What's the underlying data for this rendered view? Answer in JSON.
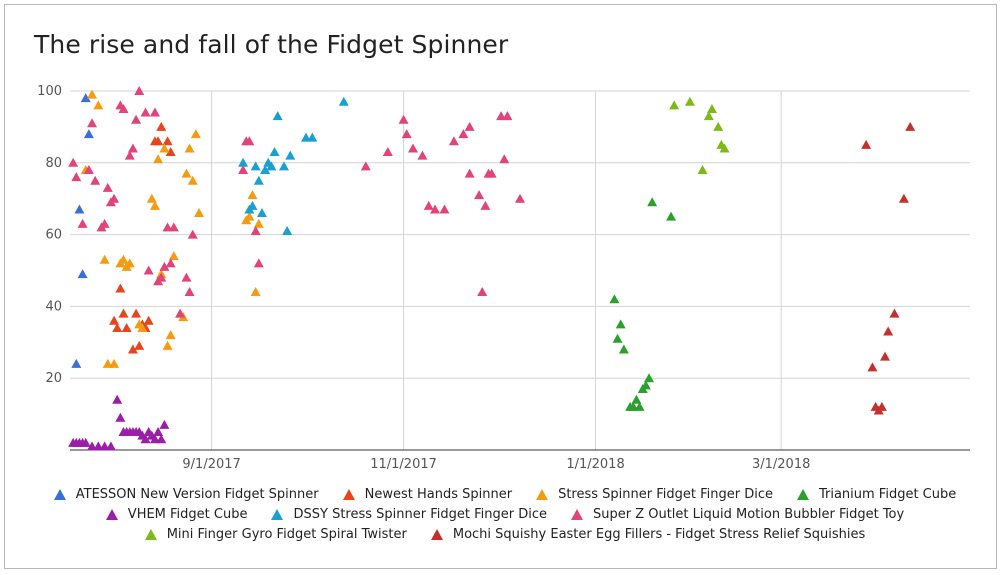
{
  "chart_data": {
    "type": "scatter",
    "title": "The rise and fall of the Fidget Spinner",
    "xlabel": "",
    "ylabel": "",
    "x_type": "date",
    "xlim": [
      "2017-07-18",
      "2018-04-30"
    ],
    "ylim": [
      0,
      100
    ],
    "x_ticks": [
      "9/1/2017",
      "11/1/2017",
      "1/1/2018",
      "3/1/2018"
    ],
    "x_tick_dates": [
      "2017-09-01",
      "2017-11-01",
      "2018-01-01",
      "2018-03-01"
    ],
    "y_ticks": [
      20,
      40,
      60,
      80,
      100
    ],
    "grid": true,
    "legend_position": "bottom",
    "series": [
      {
        "name": "ATESSON New Version Fidget Spinner",
        "color": "#3a6fd6",
        "points": [
          [
            "2017-07-20",
            24
          ],
          [
            "2017-07-21",
            67
          ],
          [
            "2017-07-22",
            49
          ],
          [
            "2017-07-23",
            98
          ],
          [
            "2017-07-24",
            88
          ]
        ]
      },
      {
        "name": "Newest Hands Spinner",
        "color": "#e8451e",
        "points": [
          [
            "2017-08-01",
            36
          ],
          [
            "2017-08-02",
            34
          ],
          [
            "2017-08-03",
            45
          ],
          [
            "2017-08-04",
            38
          ],
          [
            "2017-08-05",
            34
          ],
          [
            "2017-08-07",
            28
          ],
          [
            "2017-08-08",
            38
          ],
          [
            "2017-08-09",
            29
          ],
          [
            "2017-08-10",
            35
          ],
          [
            "2017-08-11",
            34
          ],
          [
            "2017-08-12",
            36
          ],
          [
            "2017-08-14",
            86
          ],
          [
            "2017-08-15",
            86
          ],
          [
            "2017-08-16",
            90
          ],
          [
            "2017-08-18",
            86
          ],
          [
            "2017-08-19",
            83
          ]
        ]
      },
      {
        "name": "Stress Spinner Fidget Finger Dice",
        "color": "#f59b12",
        "points": [
          [
            "2017-07-23",
            78
          ],
          [
            "2017-07-25",
            99
          ],
          [
            "2017-07-27",
            96
          ],
          [
            "2017-07-29",
            53
          ],
          [
            "2017-07-30",
            24
          ],
          [
            "2017-08-01",
            24
          ],
          [
            "2017-08-03",
            52
          ],
          [
            "2017-08-04",
            53
          ],
          [
            "2017-08-05",
            51
          ],
          [
            "2017-08-06",
            52
          ],
          [
            "2017-08-09",
            35
          ],
          [
            "2017-08-10",
            34
          ],
          [
            "2017-08-13",
            70
          ],
          [
            "2017-08-14",
            68
          ],
          [
            "2017-08-15",
            81
          ],
          [
            "2017-08-16",
            49
          ],
          [
            "2017-08-17",
            84
          ],
          [
            "2017-08-18",
            29
          ],
          [
            "2017-08-19",
            32
          ],
          [
            "2017-08-20",
            54
          ],
          [
            "2017-08-22",
            38
          ],
          [
            "2017-08-23",
            37
          ],
          [
            "2017-08-24",
            77
          ],
          [
            "2017-08-25",
            84
          ],
          [
            "2017-08-26",
            75
          ],
          [
            "2017-08-27",
            88
          ],
          [
            "2017-08-28",
            66
          ],
          [
            "2017-09-12",
            64
          ],
          [
            "2017-09-13",
            65
          ],
          [
            "2017-09-14",
            71
          ],
          [
            "2017-09-15",
            44
          ],
          [
            "2017-09-16",
            63
          ]
        ]
      },
      {
        "name": "Trianium Fidget Cube",
        "color": "#2ca02c",
        "points": [
          [
            "2018-01-07",
            42
          ],
          [
            "2018-01-08",
            31
          ],
          [
            "2018-01-09",
            35
          ],
          [
            "2018-01-10",
            28
          ],
          [
            "2018-01-12",
            12
          ],
          [
            "2018-01-13",
            12
          ],
          [
            "2018-01-14",
            14
          ],
          [
            "2018-01-15",
            12
          ],
          [
            "2018-01-16",
            17
          ],
          [
            "2018-01-17",
            18
          ],
          [
            "2018-01-18",
            20
          ],
          [
            "2018-01-19",
            69
          ],
          [
            "2018-01-25",
            65
          ]
        ]
      },
      {
        "name": "VHEM Fidget Cube",
        "color": "#9b1ea8",
        "points": [
          [
            "2017-07-19",
            2
          ],
          [
            "2017-07-20",
            2
          ],
          [
            "2017-07-21",
            2
          ],
          [
            "2017-07-22",
            2
          ],
          [
            "2017-07-23",
            2
          ],
          [
            "2017-07-25",
            1
          ],
          [
            "2017-07-27",
            1
          ],
          [
            "2017-07-29",
            1
          ],
          [
            "2017-07-31",
            1
          ],
          [
            "2017-08-02",
            14
          ],
          [
            "2017-08-03",
            9
          ],
          [
            "2017-08-04",
            5
          ],
          [
            "2017-08-05",
            5
          ],
          [
            "2017-08-06",
            5
          ],
          [
            "2017-08-07",
            5
          ],
          [
            "2017-08-08",
            5
          ],
          [
            "2017-08-09",
            5
          ],
          [
            "2017-08-10",
            4
          ],
          [
            "2017-08-11",
            3
          ],
          [
            "2017-08-12",
            5
          ],
          [
            "2017-08-13",
            4
          ],
          [
            "2017-08-14",
            3
          ],
          [
            "2017-08-15",
            5
          ],
          [
            "2017-08-16",
            3
          ],
          [
            "2017-08-17",
            7
          ]
        ]
      },
      {
        "name": "DSSY Stress Spinner Fidget Finger Dice",
        "color": "#1aa0d0",
        "points": [
          [
            "2017-09-11",
            80
          ],
          [
            "2017-09-13",
            67
          ],
          [
            "2017-09-14",
            68
          ],
          [
            "2017-09-15",
            79
          ],
          [
            "2017-09-16",
            75
          ],
          [
            "2017-09-17",
            66
          ],
          [
            "2017-09-18",
            78
          ],
          [
            "2017-09-19",
            80
          ],
          [
            "2017-09-20",
            79
          ],
          [
            "2017-09-21",
            83
          ],
          [
            "2017-09-22",
            93
          ],
          [
            "2017-09-24",
            79
          ],
          [
            "2017-09-25",
            61
          ],
          [
            "2017-09-26",
            82
          ],
          [
            "2017-10-01",
            87
          ],
          [
            "2017-10-03",
            87
          ],
          [
            "2017-10-13",
            97
          ]
        ]
      },
      {
        "name": "Super Z Outlet Liquid Motion Bubbler Fidget Toy",
        "color": "#e0447a",
        "points": [
          [
            "2017-07-19",
            80
          ],
          [
            "2017-07-20",
            76
          ],
          [
            "2017-07-22",
            63
          ],
          [
            "2017-07-24",
            78
          ],
          [
            "2017-07-25",
            91
          ],
          [
            "2017-07-26",
            75
          ],
          [
            "2017-07-28",
            62
          ],
          [
            "2017-07-29",
            63
          ],
          [
            "2017-07-30",
            73
          ],
          [
            "2017-07-31",
            69
          ],
          [
            "2017-08-01",
            70
          ],
          [
            "2017-08-03",
            96
          ],
          [
            "2017-08-04",
            95
          ],
          [
            "2017-08-06",
            82
          ],
          [
            "2017-08-07",
            84
          ],
          [
            "2017-08-08",
            92
          ],
          [
            "2017-08-09",
            100
          ],
          [
            "2017-08-11",
            94
          ],
          [
            "2017-08-12",
            50
          ],
          [
            "2017-08-14",
            94
          ],
          [
            "2017-08-15",
            47
          ],
          [
            "2017-08-16",
            48
          ],
          [
            "2017-08-17",
            51
          ],
          [
            "2017-08-18",
            62
          ],
          [
            "2017-08-19",
            52
          ],
          [
            "2017-08-20",
            62
          ],
          [
            "2017-08-22",
            38
          ],
          [
            "2017-08-24",
            48
          ],
          [
            "2017-08-25",
            44
          ],
          [
            "2017-08-26",
            60
          ],
          [
            "2017-09-11",
            78
          ],
          [
            "2017-09-12",
            86
          ],
          [
            "2017-09-13",
            86
          ],
          [
            "2017-09-15",
            61
          ],
          [
            "2017-09-16",
            52
          ],
          [
            "2017-10-20",
            79
          ],
          [
            "2017-10-27",
            83
          ],
          [
            "2017-11-01",
            92
          ],
          [
            "2017-11-02",
            88
          ],
          [
            "2017-11-04",
            84
          ],
          [
            "2017-11-07",
            82
          ],
          [
            "2017-11-09",
            68
          ],
          [
            "2017-11-11",
            67
          ],
          [
            "2017-11-14",
            67
          ],
          [
            "2017-11-17",
            86
          ],
          [
            "2017-11-20",
            88
          ],
          [
            "2017-11-22",
            90
          ],
          [
            "2017-11-22",
            77
          ],
          [
            "2017-11-25",
            71
          ],
          [
            "2017-11-26",
            44
          ],
          [
            "2017-11-27",
            68
          ],
          [
            "2017-11-28",
            77
          ],
          [
            "2017-11-29",
            77
          ],
          [
            "2017-12-02",
            93
          ],
          [
            "2017-12-03",
            81
          ],
          [
            "2017-12-04",
            93
          ],
          [
            "2017-12-08",
            70
          ]
        ]
      },
      {
        "name": "Mini Finger Gyro Fidget Spiral Twister",
        "color": "#7cbb16",
        "points": [
          [
            "2018-01-26",
            96
          ],
          [
            "2018-01-31",
            97
          ],
          [
            "2018-02-04",
            78
          ],
          [
            "2018-02-06",
            93
          ],
          [
            "2018-02-07",
            95
          ],
          [
            "2018-02-09",
            90
          ],
          [
            "2018-02-10",
            85
          ],
          [
            "2018-02-11",
            84
          ]
        ]
      },
      {
        "name": "Mochi Squishy Easter Egg Fillers - Fidget Stress Relief Squishies",
        "color": "#c4302b",
        "points": [
          [
            "2018-03-28",
            85
          ],
          [
            "2018-03-30",
            23
          ],
          [
            "2018-03-31",
            12
          ],
          [
            "2018-04-01",
            11
          ],
          [
            "2018-04-02",
            12
          ],
          [
            "2018-04-03",
            26
          ],
          [
            "2018-04-04",
            33
          ],
          [
            "2018-04-06",
            38
          ],
          [
            "2018-04-09",
            70
          ],
          [
            "2018-04-11",
            90
          ]
        ]
      }
    ]
  }
}
